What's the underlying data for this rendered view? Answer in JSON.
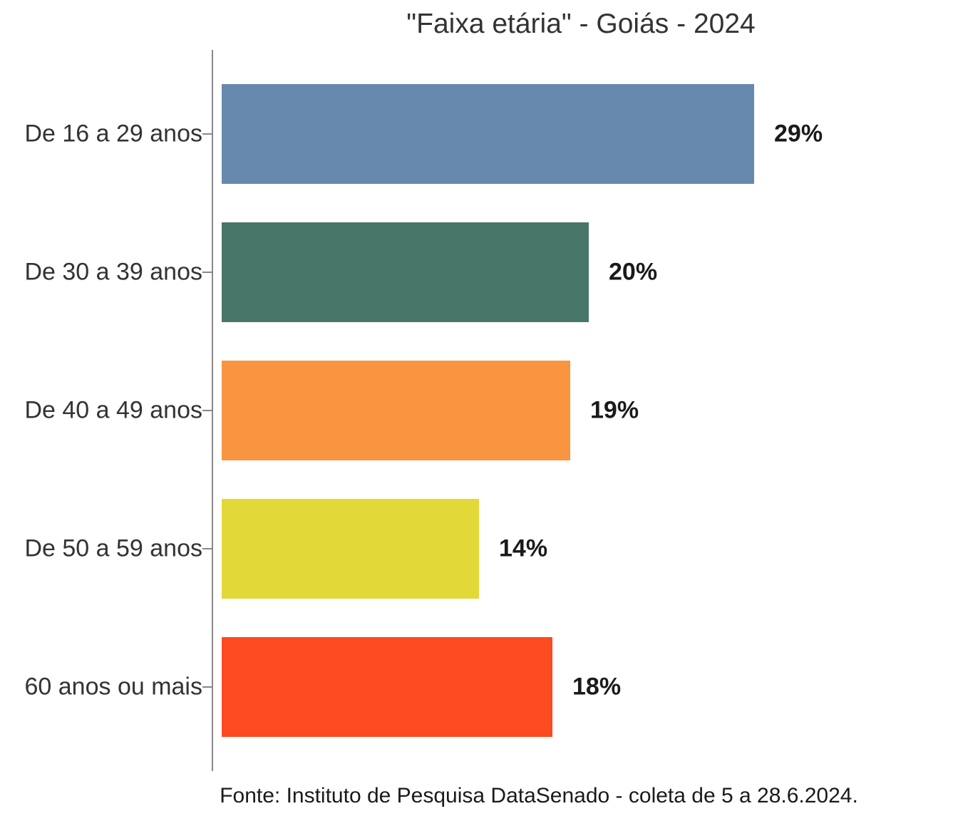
{
  "chart_data": {
    "type": "bar",
    "orientation": "horizontal",
    "title": "\"Faixa etária\" - Goiás - 2024",
    "categories": [
      "De 16 a 29 anos",
      "De 30 a 39 anos",
      "De 40 a 49 anos",
      "De 50 a 59 anos",
      "60 anos ou mais"
    ],
    "values": [
      29,
      20,
      19,
      14,
      18
    ],
    "value_labels": [
      "29%",
      "20%",
      "19%",
      "14%",
      "18%"
    ],
    "bar_colors": [
      "#6789ae",
      "#487668",
      "#f99440",
      "#e2d838",
      "#fc4a21"
    ],
    "xlabel": "",
    "ylabel": "",
    "xlim": [
      0,
      39.5
    ],
    "grid": false,
    "legend": "none",
    "source": "Fonte: Instituto de Pesquisa DataSenado - coleta de 5 a 28.6.2024."
  },
  "colors": {
    "axis_line": "#888888",
    "category_text": "#333333",
    "value_text": "#1a1a1a",
    "title_text": "#333333",
    "background": "#ffffff"
  }
}
